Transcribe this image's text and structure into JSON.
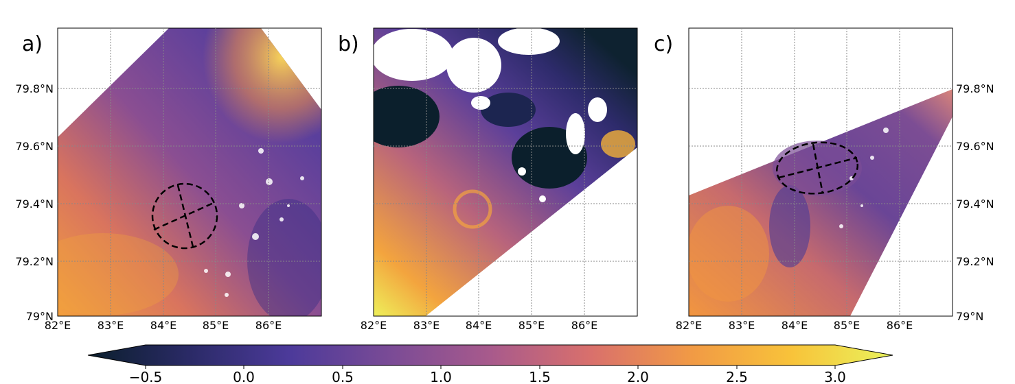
{
  "panels": [
    {
      "label": "a)",
      "x_ticks": [
        "82°E",
        "83°E",
        "84°E",
        "85°E",
        "86°E"
      ],
      "y_ticks": [
        "79°N",
        "79.2°N",
        "79.4°N",
        "79.6°N",
        "79.8°N"
      ],
      "y_tick_side": "left",
      "eddy_outline": "dashed black circle with two dashed axes"
    },
    {
      "label": "b)",
      "x_ticks": [
        "82°E",
        "83°E",
        "84°E",
        "85°E",
        "86°E"
      ],
      "y_ticks": [],
      "y_tick_side": "none"
    },
    {
      "label": "c)",
      "x_ticks": [
        "82°E",
        "83°E",
        "84°E",
        "85°E",
        "86°E"
      ],
      "y_ticks": [
        "79°N",
        "79.2°N",
        "79.4°N",
        "79.6°N",
        "79.8°N"
      ],
      "y_tick_side": "right",
      "eddy_outline": "dashed black ellipse with two dashed axes"
    }
  ],
  "colorbar": {
    "ticks": [
      "−0.5",
      "0.0",
      "0.5",
      "1.0",
      "1.5",
      "2.0",
      "2.5",
      "3.0"
    ],
    "range": [
      -0.5,
      3.0
    ],
    "extend": "both",
    "colors": [
      "#0b1f2c",
      "#2a2a66",
      "#4c3a9a",
      "#7a4b96",
      "#a85a8c",
      "#d9706c",
      "#f19a45",
      "#f8c33a",
      "#e9f35c"
    ]
  },
  "grid": "dotted gray lines"
}
